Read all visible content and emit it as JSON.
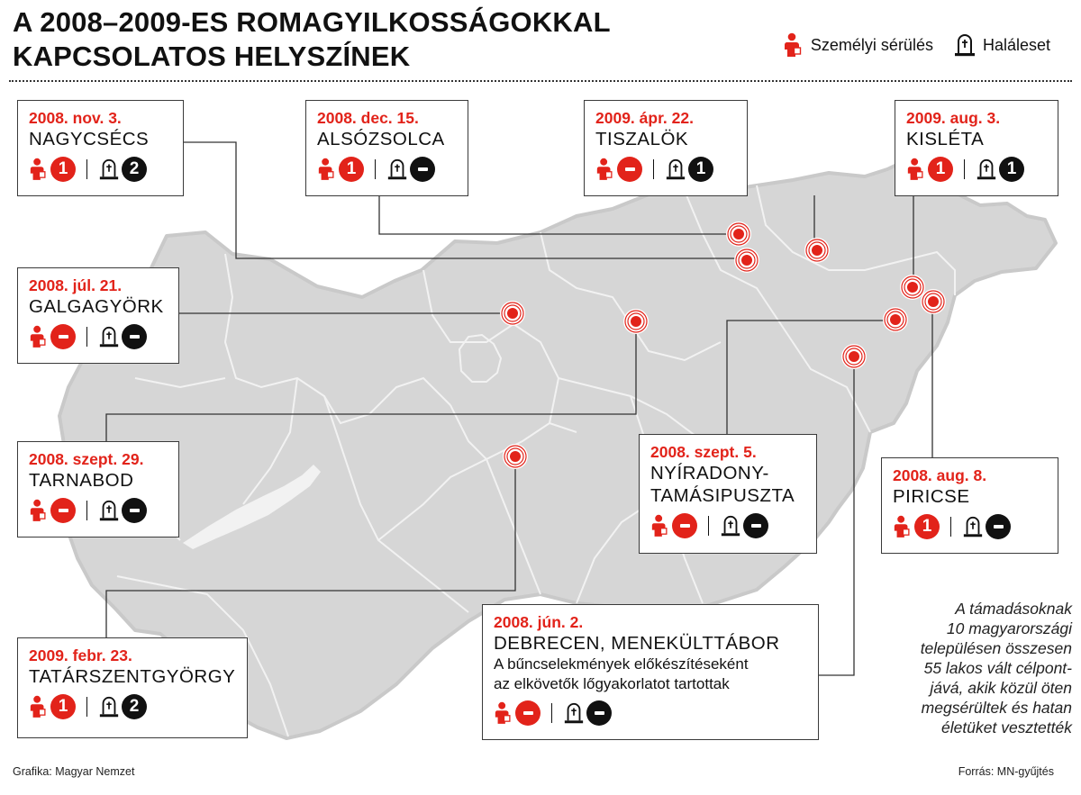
{
  "title": {
    "line1": "A 2008–2009-ES ROMAGYILKOSSÁGOKKAL",
    "line2": "KAPCSOLATOS HELYSZÍNEK"
  },
  "legend": {
    "injury_label": "Személyi sérülés",
    "injury_icon": "injured-person-icon",
    "death_label": "Haláleset",
    "death_icon": "gravestone-icon"
  },
  "colors": {
    "accent": "#e2231a",
    "dark": "#111111",
    "map_fill": "#d6d6d6",
    "map_border": "#f5f5f5"
  },
  "incidents": [
    {
      "date": "2008. nov. 3.",
      "place": "NAGYCSÉCS",
      "injured": "1",
      "dead": "2"
    },
    {
      "date": "2008. dec. 15.",
      "place": "ALSÓZSOLCA",
      "injured": "1",
      "dead": "–"
    },
    {
      "date": "2009. ápr. 22.",
      "place": "TISZALÖK",
      "injured": "–",
      "dead": "1"
    },
    {
      "date": "2009. aug. 3.",
      "place": "KISLÉTA",
      "injured": "1",
      "dead": "1"
    },
    {
      "date": "2008. júl. 21.",
      "place": "GALGAGYÖRK",
      "injured": "–",
      "dead": "–"
    },
    {
      "date": "2008. szept. 29.",
      "place": "TARNABOD",
      "injured": "–",
      "dead": "–"
    },
    {
      "date": "2008. szept. 5.",
      "place": "NYÍRADONY-",
      "place2": "TAMÁSIPUSZTA",
      "injured": "–",
      "dead": "–"
    },
    {
      "date": "2008. aug. 8.",
      "place": "PIRICSE",
      "injured": "1",
      "dead": "–"
    },
    {
      "date": "2009. febr. 23.",
      "place": "TATÁRSZENTGYÖRGY",
      "injured": "1",
      "dead": "2"
    },
    {
      "date": "2008. jún. 2.",
      "place": "DEBRECEN, MENEKÜLTTÁBOR",
      "note1": "A bűncselekmények előkészítéseként",
      "note2": "az elkövetők lőgyakorlatot tartottak",
      "injured": "–",
      "dead": "–"
    }
  ],
  "summary": {
    "line1": "A támadásoknak",
    "line2": "10 magyarországi",
    "line3": "településen összesen",
    "line4": "55 lakos vált célpont-",
    "line5": "jává, akik közül öten",
    "line6": "megsérültek és hatan",
    "line7": "életüket vesztették"
  },
  "footer": {
    "credit": "Grafika: Magyar Nemzet",
    "source": "Forrás: MN-gyűjtés"
  }
}
